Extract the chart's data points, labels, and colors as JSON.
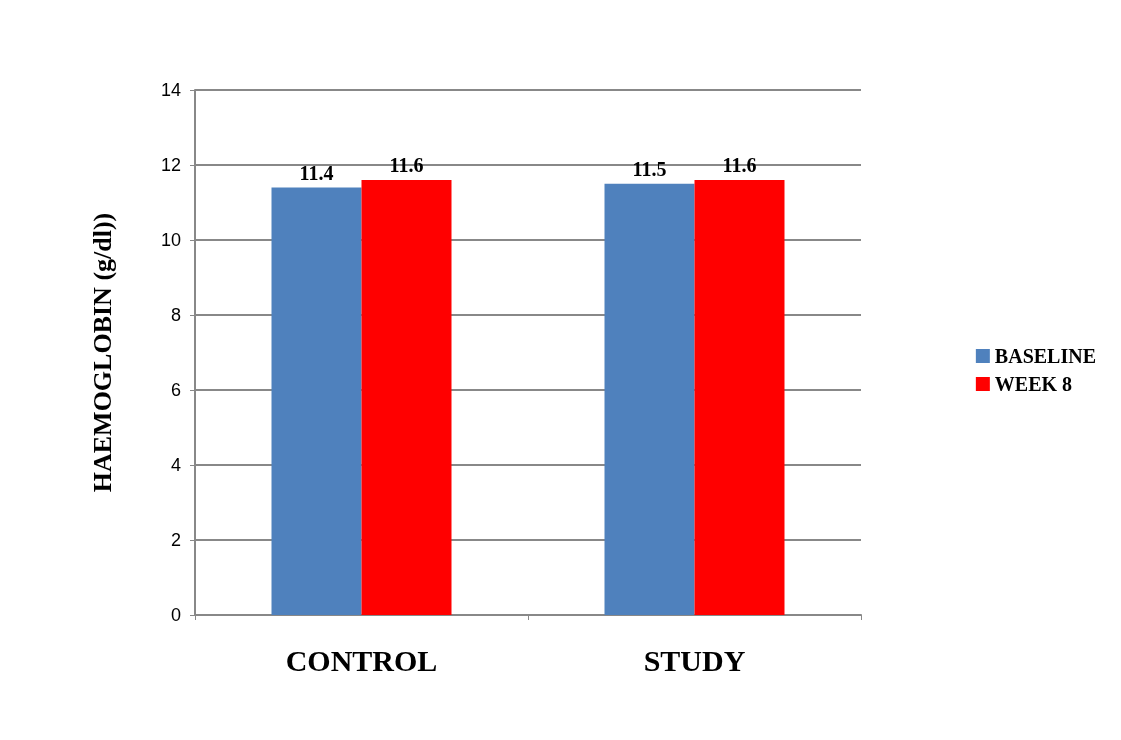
{
  "chart_data": {
    "type": "bar",
    "ylabel": "HAEMOGLOBIN (g/dl))",
    "categories": [
      "CONTROL",
      "STUDY"
    ],
    "series": [
      {
        "name": "BASELINE",
        "color": "#4f81bd",
        "values": [
          11.4,
          11.5
        ]
      },
      {
        "name": "WEEK 8",
        "color": "#ff0000",
        "values": [
          11.6,
          11.6
        ]
      }
    ],
    "ylim": [
      0,
      14
    ],
    "yticks": [
      0,
      2,
      4,
      6,
      8,
      10,
      12,
      14
    ],
    "grid": "y",
    "legend": "right",
    "data_labels": true
  }
}
